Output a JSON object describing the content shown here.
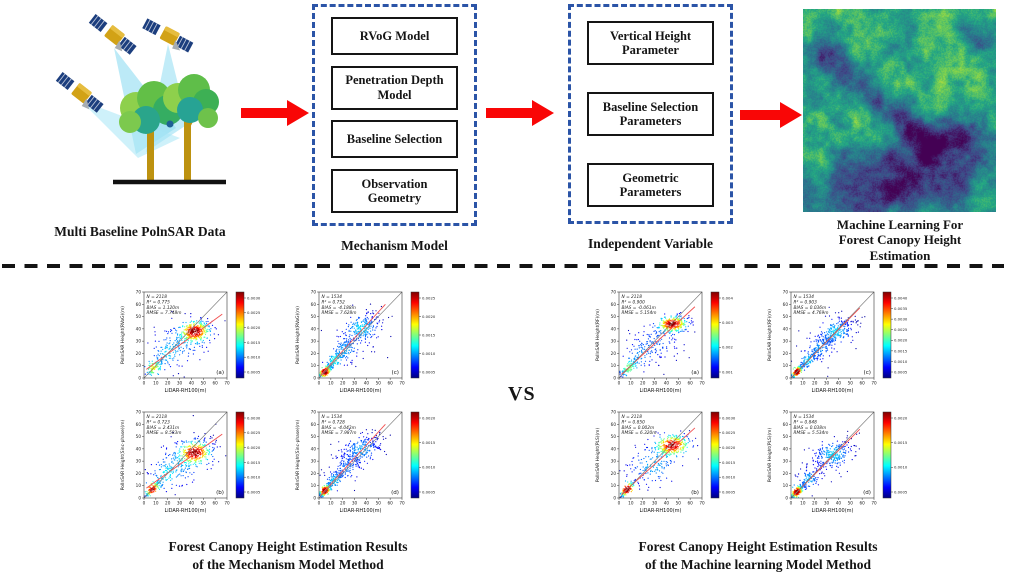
{
  "flowchart": {
    "input_label": "Multi Baseline PolnSAR Data",
    "mechanism": {
      "title": "Mechanism Model",
      "items": [
        "RVoG Model",
        "Penetration Depth Model",
        "Baseline Selection",
        "Observation Geometry"
      ]
    },
    "independent": {
      "title": "Independent Variable",
      "items": [
        "Vertical Height Parameter",
        "Baseline Selection Parameters",
        "Geometric Parameters"
      ]
    },
    "output_label_lines": [
      "Machine Learning For",
      "Forest Canopy Height",
      "Estimation"
    ],
    "arrow_color": "#f90606",
    "box_border_color": "#2b54a7"
  },
  "comparison": {
    "vs_label": "VS",
    "left_caption": [
      "Forest Canopy Height  Estimation Results",
      "of the Mechanism Model Method"
    ],
    "right_caption": [
      "Forest Canopy Height Estimation Results",
      "of the Machine learning Model Method"
    ]
  },
  "chart_data": [
    {
      "type": "scatter",
      "group": "mechanism",
      "panel": "(a)",
      "stats": {
        "N": 2118,
        "R2": 0.775,
        "BIAS_m": 1.12,
        "RMSE_m": 7.748
      },
      "stats_lines": [
        "N = 2118",
        "R² = 0.775",
        "BIAS = 1.120m",
        "RMSE = 7.748m"
      ],
      "xlabel": "LiDAR-RH100(m)",
      "ylabel": "PolInSAR Height(RVoG)(m)",
      "xlim": [
        0,
        70
      ],
      "ylim": [
        0,
        70
      ],
      "ticks": [
        0,
        10,
        20,
        30,
        40,
        50,
        60,
        70
      ],
      "colorbar_ticks": [
        "0.0030",
        "0.0025",
        "0.0020",
        "0.0015",
        "0.0010",
        "0.0005"
      ],
      "fit_line": [
        [
          2,
          7
        ],
        [
          66,
          52
        ]
      ],
      "clusters": [
        {
          "cx": 43,
          "cy": 38,
          "sx": 6.5,
          "sy": 4.5,
          "rho": 0.35,
          "n": 330
        },
        {
          "cx": 30,
          "cy": 27,
          "sx": 12,
          "sy": 9,
          "rho": 0.5,
          "n": 120
        },
        {
          "cx": 8,
          "cy": 8,
          "sx": 4,
          "sy": 4,
          "rho": 0.8,
          "n": 90
        },
        {
          "cx": 19,
          "cy": 19,
          "sx": 6,
          "sy": 6,
          "rho": 0.6,
          "n": 60
        },
        {
          "cx": 33,
          "cy": 31,
          "sx": 19,
          "sy": 13,
          "rho": 0.4,
          "n": 70
        }
      ]
    },
    {
      "type": "scatter",
      "group": "mechanism",
      "panel": "(c)",
      "stats": {
        "N": 1534,
        "R2": 0.752,
        "BIAS_m": -4.188,
        "RMSE_m": 7.628
      },
      "stats_lines": [
        "N = 1534",
        "R² = 0.752",
        "BIAS = -4.188m",
        "RMSE = 7.628m"
      ],
      "xlabel": "LiDAR-RH100(m)",
      "ylabel": "PolInSAR Height(RVoG)(m)",
      "xlim": [
        0,
        70
      ],
      "ylim": [
        0,
        70
      ],
      "ticks": [
        0,
        10,
        20,
        30,
        40,
        50,
        60,
        70
      ],
      "colorbar_ticks": [
        "0.0025",
        "0.0020",
        "0.0015",
        "0.0010",
        "0.0005"
      ],
      "fit_line": [
        [
          1,
          2
        ],
        [
          56,
          60
        ]
      ],
      "clusters": [
        {
          "cx": 5,
          "cy": 5,
          "sx": 2.8,
          "sy": 2.8,
          "rho": 0.75,
          "n": 190
        },
        {
          "cx": 13,
          "cy": 14,
          "sx": 4,
          "sy": 4,
          "rho": 0.7,
          "n": 90
        },
        {
          "cx": 22,
          "cy": 23,
          "sx": 6,
          "sy": 5.5,
          "rho": 0.65,
          "n": 110
        },
        {
          "cx": 36,
          "cy": 41,
          "sx": 8,
          "sy": 6,
          "rho": 0.55,
          "n": 210
        },
        {
          "cx": 30,
          "cy": 31,
          "sx": 14,
          "sy": 12,
          "rho": 0.45,
          "n": 80
        }
      ]
    },
    {
      "type": "scatter",
      "group": "mechanism",
      "panel": "(b)",
      "stats": {
        "N": 2118,
        "R2": 0.723,
        "BIAS_m": 2.431,
        "RMSE_m": 8.583
      },
      "stats_lines": [
        "N = 2118",
        "R² = 0.723",
        "BIAS = 2.431m",
        "RMSE = 8.583m"
      ],
      "xlabel": "LiDAR-RH100(m)",
      "ylabel": "PolInSAR Height(Sinc-phase)(m)",
      "xlim": [
        0,
        70
      ],
      "ylim": [
        0,
        70
      ],
      "ticks": [
        0,
        10,
        20,
        30,
        40,
        50,
        60,
        70
      ],
      "colorbar_ticks": [
        "0.0030",
        "0.0025",
        "0.0020",
        "0.0015",
        "0.0010",
        "0.0005"
      ],
      "fit_line": [
        [
          2,
          8
        ],
        [
          66,
          52
        ]
      ],
      "clusters": [
        {
          "cx": 43,
          "cy": 37,
          "sx": 7,
          "sy": 4.8,
          "rho": 0.35,
          "n": 320
        },
        {
          "cx": 29,
          "cy": 26,
          "sx": 12,
          "sy": 9,
          "rho": 0.5,
          "n": 110
        },
        {
          "cx": 7,
          "cy": 7,
          "sx": 3.5,
          "sy": 3.5,
          "rho": 0.85,
          "n": 110
        },
        {
          "cx": 18,
          "cy": 18,
          "sx": 6,
          "sy": 6,
          "rho": 0.6,
          "n": 60
        },
        {
          "cx": 33,
          "cy": 30,
          "sx": 19,
          "sy": 13,
          "rho": 0.4,
          "n": 70
        }
      ]
    },
    {
      "type": "scatter",
      "group": "mechanism",
      "panel": "(d)",
      "stats": {
        "N": 1534,
        "R2": 0.728,
        "BIAS_m": -4.043,
        "RMSE_m": 7.987
      },
      "stats_lines": [
        "N = 1534",
        "R² = 0.728",
        "BIAS = -4.043m",
        "RMSE = 7.987m"
      ],
      "xlabel": "LiDAR-RH100(m)",
      "ylabel": "PolInSAR Height(Sinc-phase)(m)",
      "xlim": [
        0,
        70
      ],
      "ylim": [
        0,
        70
      ],
      "ticks": [
        0,
        10,
        20,
        30,
        40,
        50,
        60,
        70
      ],
      "colorbar_ticks": [
        "0.0020",
        "0.0015",
        "0.0010",
        "0.0005"
      ],
      "fit_line": [
        [
          1,
          2
        ],
        [
          56,
          60
        ]
      ],
      "clusters": [
        {
          "cx": 5,
          "cy": 6,
          "sx": 2.6,
          "sy": 2.6,
          "rho": 0.75,
          "n": 210
        },
        {
          "cx": 13,
          "cy": 14,
          "sx": 4,
          "sy": 4,
          "rho": 0.7,
          "n": 90
        },
        {
          "cx": 23,
          "cy": 24,
          "sx": 6,
          "sy": 5.5,
          "rho": 0.65,
          "n": 100
        },
        {
          "cx": 36,
          "cy": 40,
          "sx": 8,
          "sy": 6,
          "rho": 0.55,
          "n": 210
        },
        {
          "cx": 30,
          "cy": 30,
          "sx": 14,
          "sy": 12,
          "rho": 0.45,
          "n": 80
        }
      ]
    },
    {
      "type": "scatter",
      "group": "machine_learning",
      "panel": "(a)",
      "stats": {
        "N": 2118,
        "R2": 0.9,
        "BIAS_m": -0.061,
        "RMSE_m": 5.154
      },
      "stats_lines": [
        "N = 2118",
        "R² = 0.900",
        "BIAS = -0.061m",
        "RMSE = 5.154m"
      ],
      "xlabel": "LiDAR-RH100(m)",
      "ylabel": "PolInSAR Height(RF)(m)",
      "xlim": [
        0,
        70
      ],
      "ylim": [
        0,
        70
      ],
      "ticks": [
        0,
        10,
        20,
        30,
        40,
        50,
        60,
        70
      ],
      "colorbar_ticks": [
        "0.004",
        "0.003",
        "0.002",
        "0.001"
      ],
      "fit_line": [
        [
          2,
          3
        ],
        [
          64,
          58
        ]
      ],
      "clusters": [
        {
          "cx": 45,
          "cy": 44,
          "sx": 6.5,
          "sy": 3.4,
          "rho": 0.3,
          "n": 320
        },
        {
          "cx": 32,
          "cy": 30,
          "sx": 11,
          "sy": 8,
          "rho": 0.5,
          "n": 100
        },
        {
          "cx": 8,
          "cy": 8,
          "sx": 4.5,
          "sy": 4.5,
          "rho": 0.85,
          "n": 110
        },
        {
          "cx": 18,
          "cy": 18,
          "sx": 6,
          "sy": 6,
          "rho": 0.6,
          "n": 60
        },
        {
          "cx": 30,
          "cy": 27,
          "sx": 17,
          "sy": 12,
          "rho": 0.4,
          "n": 60
        }
      ]
    },
    {
      "type": "scatter",
      "group": "machine_learning",
      "panel": "(c)",
      "stats": {
        "N": 1534,
        "R2": 0.903,
        "BIAS_m": 0.036,
        "RMSE_m": 4.769
      },
      "stats_lines": [
        "N = 1534",
        "R² = 0.903",
        "BIAS = 0.036m",
        "RMSE = 4.769m"
      ],
      "xlabel": "LiDAR-RH100(m)",
      "ylabel": "PolInSAR Height(RF)(m)",
      "xlim": [
        0,
        70
      ],
      "ylim": [
        0,
        70
      ],
      "ticks": [
        0,
        10,
        20,
        30,
        40,
        50,
        60,
        70
      ],
      "colorbar_ticks": [
        "0.0040",
        "0.0035",
        "0.0030",
        "0.0025",
        "0.0020",
        "0.0015",
        "0.0010",
        "0.0005"
      ],
      "fit_line": [
        [
          1,
          1
        ],
        [
          58,
          57
        ]
      ],
      "clusters": [
        {
          "cx": 5,
          "cy": 5,
          "sx": 2.6,
          "sy": 2.6,
          "rho": 0.8,
          "n": 200
        },
        {
          "cx": 14,
          "cy": 14,
          "sx": 4,
          "sy": 4,
          "rho": 0.75,
          "n": 90
        },
        {
          "cx": 24,
          "cy": 24,
          "sx": 6,
          "sy": 5,
          "rho": 0.7,
          "n": 110
        },
        {
          "cx": 38,
          "cy": 38,
          "sx": 7.5,
          "sy": 5.5,
          "rho": 0.6,
          "n": 220
        },
        {
          "cx": 31,
          "cy": 31,
          "sx": 13,
          "sy": 11,
          "rho": 0.5,
          "n": 70
        }
      ]
    },
    {
      "type": "scatter",
      "group": "machine_learning",
      "panel": "(b)",
      "stats": {
        "N": 2118,
        "R2": 0.85,
        "BIAS_m": 0.002,
        "RMSE_m": 6.32
      },
      "stats_lines": [
        "N = 2118",
        "R² = 0.850",
        "BIAS = 0.002m",
        "RMSE = 6.320m"
      ],
      "xlabel": "LiDAR-RH100(m)",
      "ylabel": "PolInSAR Height(PLS)(m)",
      "xlim": [
        0,
        70
      ],
      "ylim": [
        0,
        70
      ],
      "ticks": [
        0,
        10,
        20,
        30,
        40,
        50,
        60,
        70
      ],
      "colorbar_ticks": [
        "0.0030",
        "0.0025",
        "0.0020",
        "0.0015",
        "0.0010",
        "0.0005"
      ],
      "fit_line": [
        [
          2,
          3
        ],
        [
          64,
          57
        ]
      ],
      "clusters": [
        {
          "cx": 45,
          "cy": 43,
          "sx": 7.5,
          "sy": 4.5,
          "rho": 0.35,
          "n": 300
        },
        {
          "cx": 7,
          "cy": 7,
          "sx": 3.5,
          "sy": 3.5,
          "rho": 0.85,
          "n": 120
        },
        {
          "cx": 28,
          "cy": 26,
          "sx": 11,
          "sy": 8,
          "rho": 0.5,
          "n": 110
        },
        {
          "cx": 32,
          "cy": 29,
          "sx": 18,
          "sy": 13,
          "rho": 0.4,
          "n": 70
        }
      ]
    },
    {
      "type": "scatter",
      "group": "machine_learning",
      "panel": "(d)",
      "stats": {
        "N": 1534,
        "R2": 0.848,
        "BIAS_m": 0.038,
        "RMSE_m": 5.534
      },
      "stats_lines": [
        "N = 1534",
        "R² = 0.848",
        "BIAS = 0.038m",
        "RMSE = 5.534m"
      ],
      "xlabel": "LiDAR-RH100(m)",
      "ylabel": "PolInSAR Height(PLS)(m)",
      "xlim": [
        0,
        70
      ],
      "ylim": [
        0,
        70
      ],
      "ticks": [
        0,
        10,
        20,
        30,
        40,
        50,
        60,
        70
      ],
      "colorbar_ticks": [
        "0.0020",
        "0.0015",
        "0.0010",
        "0.0005"
      ],
      "fit_line": [
        [
          1,
          1
        ],
        [
          58,
          56
        ]
      ],
      "clusters": [
        {
          "cx": 5,
          "cy": 5,
          "sx": 2.8,
          "sy": 2.8,
          "rho": 0.8,
          "n": 210
        },
        {
          "cx": 15,
          "cy": 15,
          "sx": 4.5,
          "sy": 4.5,
          "rho": 0.7,
          "n": 90
        },
        {
          "cx": 36,
          "cy": 36,
          "sx": 8,
          "sy": 6,
          "rho": 0.55,
          "n": 230
        },
        {
          "cx": 27,
          "cy": 27,
          "sx": 13,
          "sy": 11,
          "rho": 0.5,
          "n": 80
        }
      ]
    }
  ]
}
